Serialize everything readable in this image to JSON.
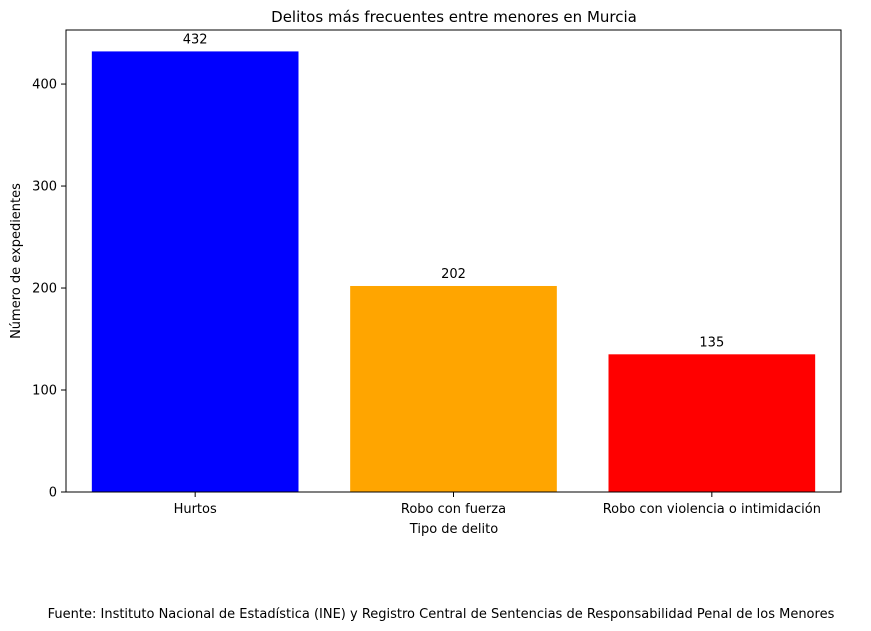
{
  "chart_data": {
    "type": "bar",
    "title": "Delitos más frecuentes entre menores en Murcia",
    "xlabel": "Tipo de delito",
    "ylabel": "Número de expedientes",
    "categories": [
      "Hurtos",
      "Robo con fuerza",
      "Robo con violencia o intimidación"
    ],
    "values": [
      432,
      202,
      135
    ],
    "data_labels": [
      "432",
      "202",
      "135"
    ],
    "colors": [
      "#0000ff",
      "#ffa500",
      "#ff0000"
    ],
    "ylim": [
      0,
      453
    ],
    "yticks": [
      0,
      100,
      200,
      300,
      400
    ],
    "ytick_labels": [
      "0",
      "100",
      "200",
      "300",
      "400"
    ],
    "grid": false,
    "legend": "none"
  },
  "footer": {
    "source": "Fuente: Instituto Nacional de Estadística (INE) y Registro Central de Sentencias de Responsabilidad Penal de los Menores"
  }
}
